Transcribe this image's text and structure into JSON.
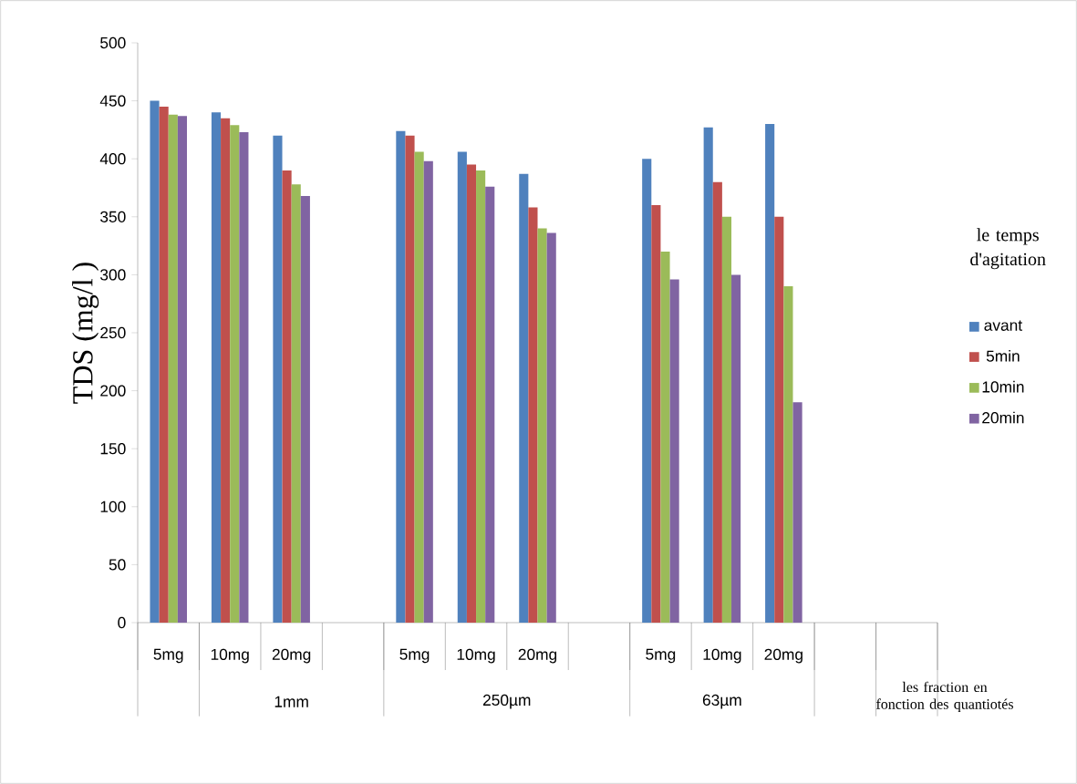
{
  "chart_data": {
    "type": "bar",
    "ylabel": "TDS (mg/l )",
    "legend_title": "le temps d'agitation",
    "categories": [
      "5mg",
      "10mg",
      "20mg",
      null,
      "5mg",
      "10mg",
      "20mg",
      null,
      "5mg",
      "10mg",
      "20mg",
      null,
      null
    ],
    "series": [
      {
        "name": "avant",
        "color": "#4f81bd",
        "values": [
          450,
          440,
          420,
          null,
          424,
          406,
          387,
          null,
          400,
          427,
          430,
          null,
          null
        ]
      },
      {
        "name": "5min",
        "color": "#c0504d",
        "values": [
          445,
          435,
          390,
          null,
          420,
          395,
          358,
          null,
          360,
          380,
          350,
          null,
          null
        ]
      },
      {
        "name": "10min",
        "color": "#9bbb59",
        "values": [
          438,
          429,
          378,
          null,
          406,
          390,
          340,
          null,
          320,
          350,
          290,
          null,
          null
        ]
      },
      {
        "name": "20min",
        "color": "#8064a2",
        "values": [
          437,
          423,
          368,
          null,
          398,
          376,
          336,
          null,
          296,
          300,
          190,
          null,
          null
        ]
      }
    ],
    "ylim": [
      0,
      500
    ],
    "yticks": [
      0,
      50,
      100,
      150,
      200,
      250,
      300,
      350,
      400,
      450,
      500
    ],
    "grid": false,
    "legend": "right",
    "annotations": [
      "1mm",
      "250µm",
      "63µm",
      "les fraction en fonction des quantiotés"
    ]
  }
}
